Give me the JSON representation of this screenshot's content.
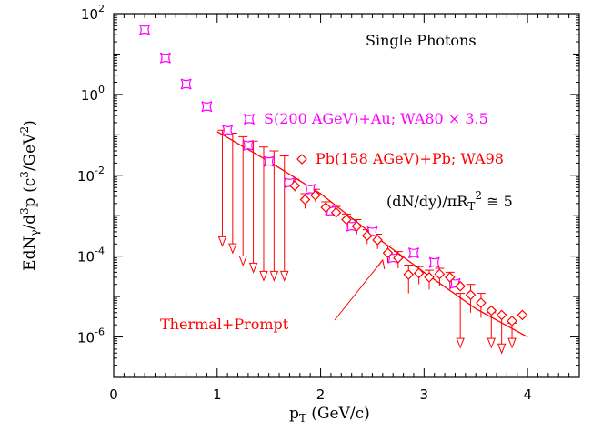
{
  "chart_data": {
    "type": "scatter",
    "xlim": [
      0,
      4.5
    ],
    "ylim_log10": [
      -7,
      2
    ],
    "y_scale": "log",
    "x_ticks": [
      "0",
      "1",
      "2",
      "3",
      "4"
    ],
    "y_ticks": [
      {
        "base": "10",
        "exp": "2"
      },
      {
        "base": "10",
        "exp": "0"
      },
      {
        "base": "10",
        "exp": "-2"
      },
      {
        "base": "10",
        "exp": "-4"
      },
      {
        "base": "10",
        "exp": "-6"
      }
    ],
    "xlabel": {
      "main": "p",
      "sub": "T",
      "rest": " (GeV/c)"
    },
    "ylabel": {
      "p1": "EdN",
      "s1": "γ",
      "p2": "/d",
      "e1": "3",
      "p3": "p (c",
      "e2": "3",
      "p4": "/GeV",
      "e3": "2",
      "p5": ")"
    },
    "title": "Single Photons",
    "series": [
      {
        "name": "S(200 AGeV)+Au; WA80 × 3.5",
        "color": "#ff00ff",
        "marker": "concave-square",
        "points": [
          {
            "x": 0.3,
            "y": 40
          },
          {
            "x": 0.5,
            "y": 8
          },
          {
            "x": 0.7,
            "y": 1.8
          },
          {
            "x": 0.9,
            "y": 0.5
          },
          {
            "x": 1.1,
            "y": 0.13
          },
          {
            "x": 1.3,
            "y": 0.055
          },
          {
            "x": 1.5,
            "y": 0.022
          },
          {
            "x": 1.7,
            "y": 0.0065
          },
          {
            "x": 1.9,
            "y": 0.0045
          },
          {
            "x": 2.1,
            "y": 0.0013
          },
          {
            "x": 2.3,
            "y": 0.00055
          },
          {
            "x": 2.5,
            "y": 0.0004
          },
          {
            "x": 2.7,
            "y": 9e-05
          },
          {
            "x": 2.9,
            "y": 0.00012
          },
          {
            "x": 3.1,
            "y": 7e-05
          },
          {
            "x": 3.3,
            "y": 2.1e-05
          }
        ]
      },
      {
        "name": "Pb(158 AGeV)+Pb; WA98",
        "color": "#ff0000",
        "marker": "diamond",
        "points": [
          {
            "x": 1.75,
            "y": 0.0055
          },
          {
            "x": 1.85,
            "y": 0.0025
          },
          {
            "x": 1.95,
            "y": 0.0032
          },
          {
            "x": 2.05,
            "y": 0.0016
          },
          {
            "x": 2.15,
            "y": 0.0012
          },
          {
            "x": 2.25,
            "y": 0.0008
          },
          {
            "x": 2.35,
            "y": 0.00055
          },
          {
            "x": 2.45,
            "y": 0.00032
          },
          {
            "x": 2.55,
            "y": 0.00025
          },
          {
            "x": 2.65,
            "y": 0.00012
          },
          {
            "x": 2.75,
            "y": 9e-05
          },
          {
            "x": 2.85,
            "y": 3.5e-05
          },
          {
            "x": 2.95,
            "y": 3.8e-05
          },
          {
            "x": 3.05,
            "y": 3e-05
          },
          {
            "x": 3.15,
            "y": 3.6e-05
          },
          {
            "x": 3.25,
            "y": 3e-05
          },
          {
            "x": 3.35,
            "y": 1.8e-05
          },
          {
            "x": 3.45,
            "y": 1.1e-05
          },
          {
            "x": 3.55,
            "y": 7e-06
          },
          {
            "x": 3.65,
            "y": 4.5e-06
          },
          {
            "x": 3.75,
            "y": 3.5e-06
          },
          {
            "x": 3.85,
            "y": 2.5e-06
          },
          {
            "x": 3.95,
            "y": 3.5e-06
          }
        ]
      }
    ],
    "upper_limits": {
      "color": "#ff0000",
      "points": [
        {
          "x": 1.05,
          "y": 0.13,
          "to": 0.00018
        },
        {
          "x": 1.15,
          "y": 0.11,
          "to": 0.00012
        },
        {
          "x": 1.25,
          "y": 0.09,
          "to": 6e-05
        },
        {
          "x": 1.35,
          "y": 0.07,
          "to": 4e-05
        },
        {
          "x": 1.45,
          "y": 0.05,
          "to": 2.5e-05
        },
        {
          "x": 1.55,
          "y": 0.04,
          "to": 2.5e-05
        },
        {
          "x": 1.65,
          "y": 0.03,
          "to": 2.5e-05
        },
        {
          "x": 3.35,
          "y": 1.2e-05,
          "to": 5.5e-07
        },
        {
          "x": 3.65,
          "y": 4e-06,
          "to": 5.5e-07
        },
        {
          "x": 3.75,
          "y": 3.5e-06,
          "to": 4e-07
        },
        {
          "x": 3.85,
          "y": 2.2e-06,
          "to": 5.5e-07
        }
      ]
    },
    "error_bars": {
      "color": "#ff0000",
      "points": [
        {
          "x": 1.75,
          "lo": 0.004,
          "hi": 0.008
        },
        {
          "x": 1.85,
          "lo": 0.0015,
          "hi": 0.0035
        },
        {
          "x": 1.95,
          "lo": 0.0022,
          "hi": 0.0045
        },
        {
          "x": 2.05,
          "lo": 0.001,
          "hi": 0.0022
        },
        {
          "x": 2.15,
          "lo": 0.0008,
          "hi": 0.0017
        },
        {
          "x": 2.25,
          "lo": 0.0005,
          "hi": 0.0011
        },
        {
          "x": 2.35,
          "lo": 0.00035,
          "hi": 0.0008
        },
        {
          "x": 2.45,
          "lo": 0.0002,
          "hi": 0.00045
        },
        {
          "x": 2.55,
          "lo": 0.00015,
          "hi": 0.00035
        },
        {
          "x": 2.65,
          "lo": 7e-05,
          "hi": 0.00018
        },
        {
          "x": 2.75,
          "lo": 5e-05,
          "hi": 0.00013
        },
        {
          "x": 2.85,
          "lo": 1.2e-05,
          "hi": 6e-05
        },
        {
          "x": 2.95,
          "lo": 2e-05,
          "hi": 5.5e-05
        },
        {
          "x": 3.05,
          "lo": 1.5e-05,
          "hi": 4.5e-05
        },
        {
          "x": 3.15,
          "lo": 1.8e-05,
          "hi": 5e-05
        },
        {
          "x": 3.25,
          "lo": 1.5e-05,
          "hi": 4e-05
        },
        {
          "x": 3.45,
          "lo": 4e-06,
          "hi": 2e-05
        },
        {
          "x": 3.55,
          "lo": 3e-06,
          "hi": 1.2e-05
        }
      ]
    },
    "curve": {
      "name": "Thermal+Prompt",
      "color": "#ff0000",
      "points": [
        {
          "x": 1.0,
          "y": 0.12
        },
        {
          "x": 1.5,
          "y": 0.022
        },
        {
          "x": 2.0,
          "y": 0.0035
        },
        {
          "x": 2.5,
          "y": 0.00035
        },
        {
          "x": 3.0,
          "y": 4e-05
        },
        {
          "x": 3.5,
          "y": 5e-06
        },
        {
          "x": 4.0,
          "y": 1e-06
        }
      ]
    },
    "annotations": {
      "legend_magenta": "S(200 AGeV)+Au; WA80 × 3.5",
      "legend_red": "Pb(158 AGeV)+Pb; WA98",
      "formula": {
        "a": "(dN/dy)/πR",
        "sub": "T",
        "sup": "2",
        "b": " ≅ 5"
      },
      "curve_label": "Thermal+Prompt",
      "arrow_to": {
        "x": 2.6,
        "y": 8e-05
      }
    }
  }
}
